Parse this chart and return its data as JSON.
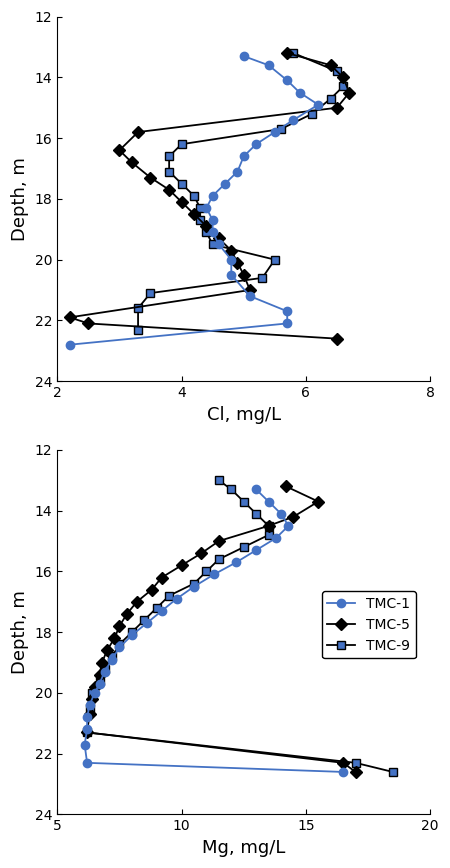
{
  "cl_tmc1_depth": [
    13.3,
    13.6,
    14.1,
    14.5,
    14.9,
    15.4,
    15.8,
    16.2,
    16.6,
    17.1,
    17.5,
    17.9,
    18.3,
    18.7,
    19.1,
    19.5,
    20.0,
    20.5,
    21.2,
    21.7,
    22.1,
    22.8
  ],
  "cl_tmc1_val": [
    5.0,
    5.4,
    5.7,
    5.9,
    6.2,
    5.8,
    5.5,
    5.2,
    5.0,
    4.9,
    4.7,
    4.5,
    4.4,
    4.5,
    4.5,
    4.6,
    4.8,
    4.8,
    5.1,
    5.7,
    5.7,
    2.2
  ],
  "cl_tmc5_depth": [
    13.2,
    13.6,
    14.0,
    14.5,
    15.0,
    15.8,
    16.4,
    16.8,
    17.3,
    17.7,
    18.1,
    18.5,
    18.9,
    19.3,
    19.7,
    20.1,
    20.5,
    21.0,
    21.9,
    22.1,
    22.6
  ],
  "cl_tmc5_val": [
    5.7,
    6.4,
    6.6,
    6.7,
    6.5,
    3.3,
    3.0,
    3.2,
    3.5,
    3.8,
    4.0,
    4.2,
    4.4,
    4.6,
    4.8,
    4.9,
    5.0,
    5.1,
    2.2,
    2.5,
    6.5
  ],
  "cl_tmc9_depth": [
    13.2,
    13.8,
    14.3,
    14.7,
    15.2,
    15.7,
    16.2,
    16.6,
    17.1,
    17.5,
    17.9,
    18.3,
    18.7,
    19.1,
    19.5,
    20.0,
    20.6,
    21.1,
    21.6,
    22.3
  ],
  "cl_tmc9_val": [
    5.8,
    6.5,
    6.6,
    6.4,
    6.1,
    5.6,
    4.0,
    3.8,
    3.8,
    4.0,
    4.2,
    4.3,
    4.3,
    4.4,
    4.5,
    5.5,
    5.3,
    3.5,
    3.3,
    3.3
  ],
  "mg_tmc1_depth": [
    13.3,
    13.7,
    14.1,
    14.5,
    14.9,
    15.3,
    15.7,
    16.1,
    16.5,
    16.9,
    17.3,
    17.7,
    18.1,
    18.5,
    18.9,
    19.3,
    19.7,
    20.0,
    20.4,
    20.8,
    21.2,
    21.7,
    22.3,
    22.6
  ],
  "mg_tmc1_val": [
    13.0,
    13.5,
    14.0,
    14.3,
    13.8,
    13.0,
    12.2,
    11.3,
    10.5,
    9.8,
    9.2,
    8.6,
    8.0,
    7.5,
    7.2,
    6.9,
    6.7,
    6.5,
    6.3,
    6.2,
    6.2,
    6.1,
    6.2,
    16.5
  ],
  "mg_tmc5_depth": [
    13.2,
    13.7,
    14.2,
    14.5,
    15.0,
    15.4,
    15.8,
    16.2,
    16.6,
    17.0,
    17.4,
    17.8,
    18.2,
    18.6,
    19.0,
    19.4,
    19.8,
    20.2,
    20.7,
    21.3,
    22.3,
    22.6
  ],
  "mg_tmc5_val": [
    14.2,
    15.5,
    14.5,
    13.5,
    11.5,
    10.8,
    10.0,
    9.2,
    8.8,
    8.2,
    7.8,
    7.5,
    7.3,
    7.0,
    6.8,
    6.7,
    6.5,
    6.4,
    6.3,
    6.2,
    16.5,
    17.0
  ],
  "mg_tmc9_depth": [
    13.0,
    13.3,
    13.7,
    14.1,
    14.5,
    14.8,
    15.2,
    15.6,
    16.0,
    16.4,
    16.8,
    17.2,
    17.6,
    18.0,
    18.4,
    18.8,
    19.2,
    19.6,
    20.0,
    20.5,
    21.3,
    22.3,
    22.6
  ],
  "mg_tmc9_val": [
    11.5,
    12.0,
    12.5,
    13.0,
    13.5,
    13.5,
    12.5,
    11.5,
    11.0,
    10.5,
    9.5,
    9.0,
    8.5,
    8.0,
    7.5,
    7.2,
    6.9,
    6.7,
    6.4,
    6.3,
    6.2,
    17.0,
    18.5
  ],
  "tmc1_color": "#4472C4",
  "tmc5_color": "#000000",
  "tmc9_color": "#000000",
  "tmc9_face_color": "#4472C4",
  "cl_xlabel": "Cl, mg/L",
  "mg_xlabel": "Mg, mg/L",
  "ylabel": "Depth, m",
  "cl_xlim": [
    2,
    8
  ],
  "mg_xlim": [
    5,
    20
  ],
  "ylim": [
    24,
    12
  ],
  "yticks": [
    12,
    14,
    16,
    18,
    20,
    22,
    24
  ],
  "cl_xticks": [
    2,
    4,
    6,
    8
  ],
  "mg_xticks": [
    5,
    10,
    15,
    20
  ]
}
